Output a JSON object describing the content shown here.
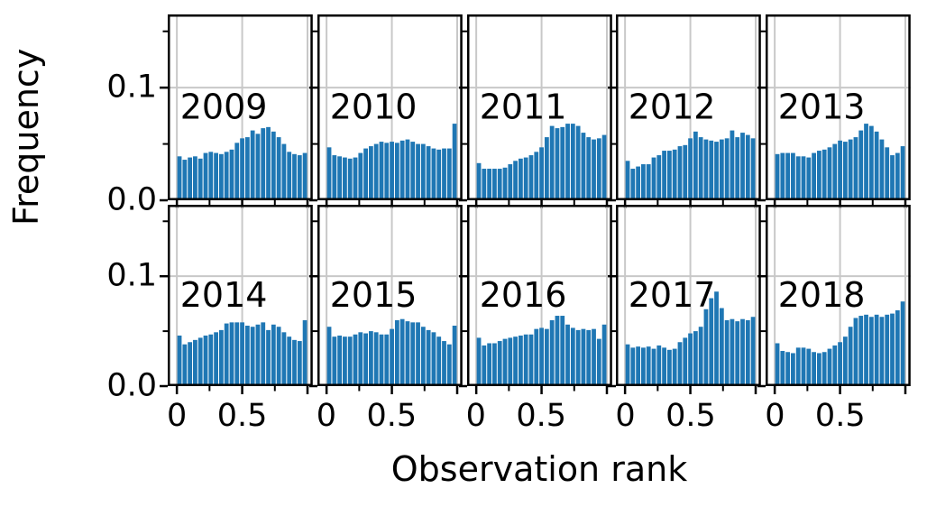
{
  "figure": {
    "ylabel": "Frequency",
    "xlabel": "Observation rank"
  },
  "chart_data": {
    "type": "bar",
    "subtype": "histogram-small-multiples",
    "title": "",
    "xlabel": "Observation rank",
    "ylabel": "Frequency",
    "grid": true,
    "legend": "none",
    "rows": 2,
    "cols": 5,
    "xlim": [
      -0.07,
      1.04
    ],
    "ylim": [
      0,
      0.165
    ],
    "bins": {
      "start": 0.0,
      "end": 1.0,
      "count": 25,
      "width": 0.04
    },
    "xticks": [
      {
        "value": 0.0,
        "label": "0"
      },
      {
        "value": 0.5,
        "label": "0.5"
      },
      {
        "value": 1.0,
        "label": ""
      }
    ],
    "xticks_minor": [
      0.25,
      0.75
    ],
    "yticks": [
      {
        "value": 0.0,
        "label": "0.0"
      },
      {
        "value": 0.1,
        "label": "0.1"
      }
    ],
    "yticks_minor": [
      0.05,
      0.15
    ],
    "colors": {
      "bar": "#1f77b4",
      "grid": "#c8c8c8",
      "axis": "#000000",
      "text": "#000000"
    },
    "panels": [
      {
        "year": "2009",
        "values": [
          0.039,
          0.036,
          0.038,
          0.039,
          0.037,
          0.042,
          0.043,
          0.042,
          0.041,
          0.043,
          0.045,
          0.051,
          0.055,
          0.056,
          0.062,
          0.059,
          0.064,
          0.065,
          0.061,
          0.056,
          0.05,
          0.043,
          0.041,
          0.04,
          0.042
        ]
      },
      {
        "year": "2010",
        "values": [
          0.047,
          0.04,
          0.039,
          0.038,
          0.037,
          0.038,
          0.042,
          0.046,
          0.048,
          0.05,
          0.052,
          0.051,
          0.052,
          0.051,
          0.053,
          0.054,
          0.052,
          0.05,
          0.05,
          0.048,
          0.046,
          0.045,
          0.046,
          0.046,
          0.068
        ]
      },
      {
        "year": "2011",
        "values": [
          0.033,
          0.028,
          0.028,
          0.028,
          0.028,
          0.029,
          0.032,
          0.035,
          0.037,
          0.038,
          0.04,
          0.043,
          0.047,
          0.056,
          0.066,
          0.064,
          0.065,
          0.068,
          0.068,
          0.066,
          0.06,
          0.056,
          0.054,
          0.055,
          0.058
        ]
      },
      {
        "year": "2012",
        "values": [
          0.035,
          0.028,
          0.03,
          0.032,
          0.032,
          0.038,
          0.04,
          0.044,
          0.044,
          0.045,
          0.048,
          0.049,
          0.055,
          0.061,
          0.056,
          0.054,
          0.053,
          0.052,
          0.054,
          0.055,
          0.062,
          0.056,
          0.06,
          0.058,
          0.055
        ]
      },
      {
        "year": "2013",
        "values": [
          0.041,
          0.042,
          0.042,
          0.042,
          0.039,
          0.039,
          0.038,
          0.042,
          0.044,
          0.045,
          0.047,
          0.05,
          0.053,
          0.052,
          0.054,
          0.056,
          0.062,
          0.068,
          0.066,
          0.061,
          0.054,
          0.047,
          0.04,
          0.042,
          0.048
        ]
      },
      {
        "year": "2014",
        "values": [
          0.046,
          0.038,
          0.04,
          0.042,
          0.044,
          0.046,
          0.047,
          0.049,
          0.051,
          0.057,
          0.058,
          0.058,
          0.058,
          0.055,
          0.054,
          0.056,
          0.058,
          0.051,
          0.056,
          0.054,
          0.049,
          0.045,
          0.042,
          0.041,
          0.06
        ]
      },
      {
        "year": "2015",
        "values": [
          0.054,
          0.045,
          0.046,
          0.045,
          0.045,
          0.047,
          0.049,
          0.048,
          0.05,
          0.049,
          0.047,
          0.047,
          0.052,
          0.06,
          0.061,
          0.059,
          0.058,
          0.058,
          0.054,
          0.051,
          0.049,
          0.045,
          0.041,
          0.038,
          0.055
        ]
      },
      {
        "year": "2016",
        "values": [
          0.044,
          0.037,
          0.039,
          0.039,
          0.041,
          0.043,
          0.044,
          0.045,
          0.046,
          0.047,
          0.047,
          0.052,
          0.053,
          0.052,
          0.06,
          0.064,
          0.064,
          0.056,
          0.053,
          0.051,
          0.052,
          0.051,
          0.052,
          0.043,
          0.056
        ]
      },
      {
        "year": "2017",
        "values": [
          0.038,
          0.035,
          0.036,
          0.035,
          0.036,
          0.034,
          0.037,
          0.035,
          0.033,
          0.034,
          0.04,
          0.044,
          0.048,
          0.05,
          0.054,
          0.07,
          0.08,
          0.086,
          0.071,
          0.06,
          0.061,
          0.059,
          0.061,
          0.06,
          0.063
        ]
      },
      {
        "year": "2018",
        "values": [
          0.039,
          0.032,
          0.031,
          0.03,
          0.035,
          0.035,
          0.034,
          0.031,
          0.03,
          0.031,
          0.034,
          0.037,
          0.04,
          0.045,
          0.054,
          0.062,
          0.064,
          0.065,
          0.063,
          0.065,
          0.063,
          0.065,
          0.066,
          0.069,
          0.077
        ]
      }
    ]
  }
}
